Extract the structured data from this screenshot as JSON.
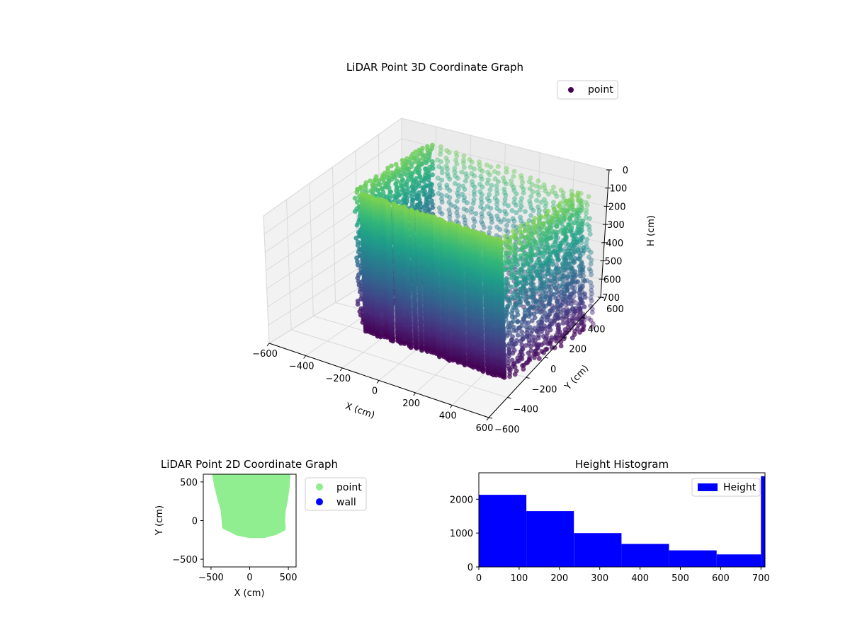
{
  "chart_data": [
    {
      "type": "scatter",
      "projection": "3d",
      "title": "LiDAR Point 3D Coordinate Graph",
      "xlabel": "X (cm)",
      "ylabel": "Y (cm)",
      "zlabel": "H (cm)",
      "xlim": [
        -600,
        600
      ],
      "ylim": [
        -600,
        600
      ],
      "zlim": [
        0,
        700
      ],
      "z_inverted": true,
      "xticks": [
        "−600",
        "−400",
        "−200",
        "0",
        "200",
        "400",
        "600"
      ],
      "yticks": [
        "−600",
        "−400",
        "−200",
        "0",
        "200",
        "400",
        "600"
      ],
      "zticks": [
        "0",
        "100",
        "200",
        "300",
        "400",
        "500",
        "600",
        "700"
      ],
      "colormap": "viridis",
      "grid": true,
      "legend": {
        "placement": "upper-right",
        "entries": [
          {
            "label": "point",
            "color": "#440154"
          }
        ]
      },
      "approx_extent": {
        "x": [
          -450,
          550
        ],
        "y": [
          -200,
          600
        ],
        "h": [
          0,
          700
        ]
      }
    },
    {
      "type": "scatter",
      "title": "LiDAR Point 2D Coordinate Graph",
      "xlabel": "X (cm)",
      "ylabel": "Y (cm)",
      "xlim": [
        -600,
        600
      ],
      "ylim": [
        -600,
        600
      ],
      "xticks": [
        "−500",
        "0",
        "500"
      ],
      "yticks": [
        "−500",
        "0",
        "500"
      ],
      "series": [
        {
          "name": "point",
          "color": "#90ee90",
          "outline": [
            [
              -450,
              600
            ],
            [
              -420,
              440
            ],
            [
              -380,
              280
            ],
            [
              -340,
              140
            ],
            [
              -330,
              40
            ],
            [
              -320,
              -80
            ],
            [
              -250,
              -110
            ],
            [
              -150,
              -160
            ],
            [
              0,
              -190
            ],
            [
              180,
              -190
            ],
            [
              330,
              -150
            ],
            [
              430,
              -100
            ],
            [
              420,
              0
            ],
            [
              430,
              130
            ],
            [
              460,
              280
            ],
            [
              480,
              440
            ],
            [
              490,
              600
            ]
          ]
        },
        {
          "name": "wall",
          "color": "#0000ff",
          "points": []
        }
      ],
      "legend": {
        "placement": "outside-right"
      }
    },
    {
      "type": "bar",
      "subtype": "histogram",
      "title": "Height Histogram",
      "xlim": [
        0,
        710
      ],
      "ylim": [
        0,
        2780
      ],
      "xticks": [
        "0",
        "100",
        "200",
        "300",
        "400",
        "500",
        "600",
        "700"
      ],
      "yticks": [
        "0",
        "1000",
        "2000"
      ],
      "bins": [
        {
          "from": 0,
          "to": 118,
          "count": 2130
        },
        {
          "from": 118,
          "to": 236,
          "count": 1650
        },
        {
          "from": 236,
          "to": 354,
          "count": 1000
        },
        {
          "from": 354,
          "to": 472,
          "count": 680
        },
        {
          "from": 472,
          "to": 590,
          "count": 490
        },
        {
          "from": 590,
          "to": 700,
          "count": 370
        },
        {
          "from": 700,
          "to": 710,
          "count": 2680
        }
      ],
      "series": [
        {
          "name": "Height",
          "color": "#0000ff"
        }
      ],
      "legend": {
        "placement": "upper-right"
      }
    }
  ]
}
